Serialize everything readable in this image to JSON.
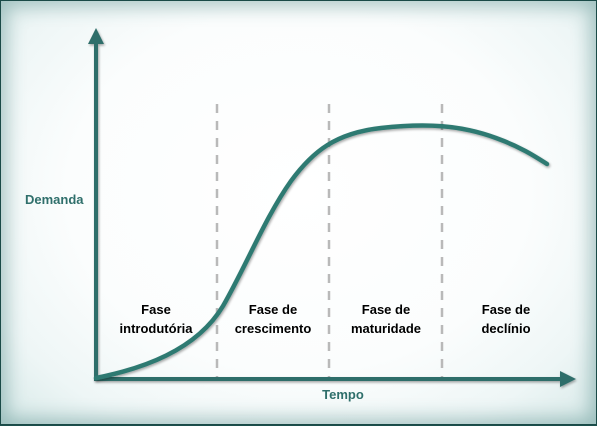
{
  "diagram": {
    "y_axis_label": "Demanda",
    "x_axis_label": "Tempo",
    "phases": [
      {
        "line1": "Fase",
        "line2": "introdutória"
      },
      {
        "line1": "Fase de",
        "line2": "crescimento"
      },
      {
        "line1": "Fase de",
        "line2": "maturidade"
      },
      {
        "line1": "Fase de",
        "line2": "declínio"
      }
    ],
    "colors": {
      "axis": "#2e6e6a",
      "curve": "#2e7a72",
      "divider": "#b9b9b9",
      "label_teal": "#2f6f6b",
      "frame": "#1c4f4c"
    }
  }
}
